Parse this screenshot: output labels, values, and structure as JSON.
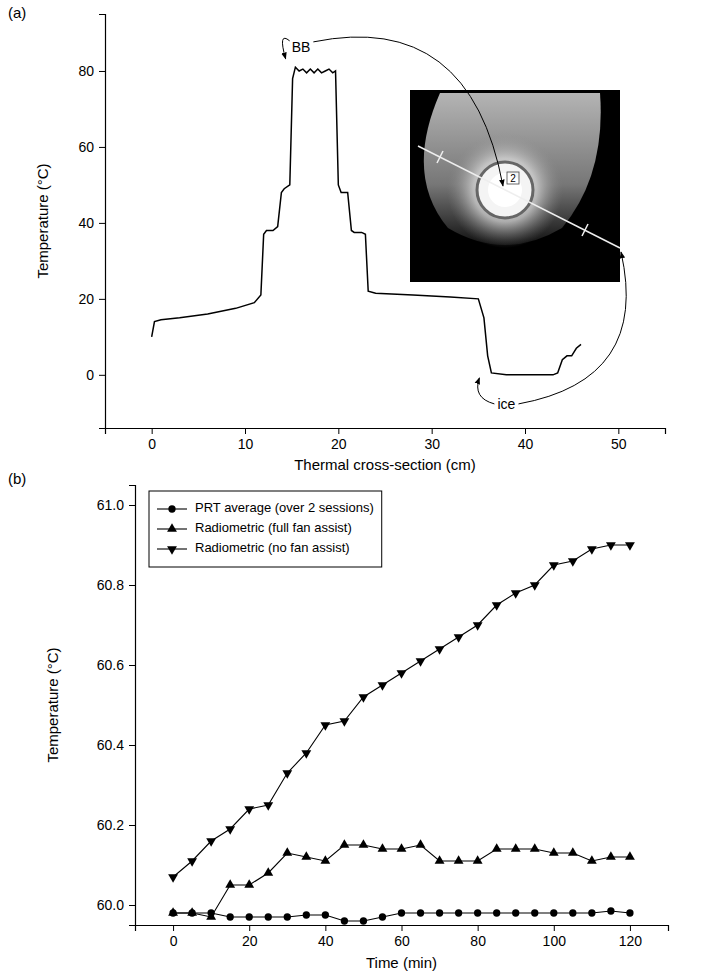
{
  "chart_data": [
    {
      "type": "line",
      "panel_label": "(a)",
      "x_label": "Thermal cross-section (cm)",
      "y_label": "Temperature (°C)",
      "xlim": [
        -5,
        55
      ],
      "xticks": [
        0,
        10,
        20,
        30,
        40,
        50
      ],
      "ylim": [
        -14,
        95
      ],
      "yticks": [
        0,
        20,
        40,
        60,
        80
      ],
      "x": [
        0,
        0.3,
        1,
        3,
        6,
        9,
        11,
        11.7,
        12,
        12.3,
        13,
        13.5,
        13.9,
        14.2,
        14.8,
        15.1,
        15.4,
        15.8,
        16.2,
        16.6,
        17,
        17.4,
        17.8,
        18.2,
        18.6,
        19,
        19.4,
        19.7,
        20,
        20.3,
        21,
        21.4,
        21.7,
        22.5,
        22.9,
        23.2,
        24,
        28,
        32,
        35,
        35.6,
        36,
        36.4,
        38,
        40,
        43,
        43.5,
        44,
        44.5,
        45,
        45.5,
        46
      ],
      "series": [
        {
          "color": "#000000",
          "values": [
            10,
            14,
            14.5,
            15,
            16,
            17.5,
            19,
            21,
            37,
            38,
            38,
            39,
            48,
            49,
            50,
            78,
            81,
            80,
            80.5,
            79.5,
            80.5,
            79.5,
            80.5,
            79.5,
            80,
            80.5,
            79.5,
            80,
            50,
            48,
            48,
            38,
            37.5,
            37.5,
            37,
            22,
            21.5,
            21,
            20.5,
            20,
            15,
            5,
            0.5,
            0,
            0,
            0,
            0.5,
            4,
            5,
            5,
            7,
            8
          ]
        }
      ],
      "annotations": [
        {
          "text": "BB",
          "x": 16,
          "y": 86
        },
        {
          "text": "ice",
          "x": 38,
          "y": -8
        }
      ],
      "inset_labels": [
        "2"
      ]
    },
    {
      "type": "line",
      "panel_label": "(b)",
      "x_label": "Time (min)",
      "y_label": "Temperature (°C)",
      "xlim": [
        -10,
        130
      ],
      "xticks": [
        0,
        20,
        40,
        60,
        80,
        100,
        120
      ],
      "ylim": [
        59.95,
        61.05
      ],
      "yticks": [
        {
          "value": 60,
          "label": "60.0"
        },
        60.2,
        60.4,
        60.6,
        60.8,
        {
          "value": 61,
          "label": "61.0"
        }
      ],
      "legend": "top-left",
      "x": [
        0,
        5,
        10,
        15,
        20,
        25,
        30,
        35,
        40,
        45,
        50,
        55,
        60,
        65,
        70,
        75,
        80,
        85,
        90,
        95,
        100,
        105,
        110,
        115,
        120
      ],
      "series": [
        {
          "name": "PRT average (over 2 sessions)",
          "color": "#000000",
          "marker": "circle",
          "values": [
            59.98,
            59.98,
            59.98,
            59.97,
            59.97,
            59.97,
            59.97,
            59.975,
            59.975,
            59.96,
            59.96,
            59.97,
            59.98,
            59.98,
            59.98,
            59.98,
            59.98,
            59.98,
            59.98,
            59.98,
            59.98,
            59.98,
            59.98,
            59.985,
            59.98
          ]
        },
        {
          "name": "Radiometric (full fan assist)",
          "color": "#000000",
          "marker": "triangle-up",
          "values": [
            59.98,
            59.98,
            59.97,
            60.05,
            60.05,
            60.08,
            60.13,
            60.12,
            60.11,
            60.15,
            60.15,
            60.14,
            60.14,
            60.15,
            60.11,
            60.11,
            60.11,
            60.14,
            60.14,
            60.14,
            60.13,
            60.13,
            60.11,
            60.12,
            60.12
          ]
        },
        {
          "name": "Radiometric (no fan assist)",
          "color": "#000000",
          "marker": "triangle-down",
          "values": [
            60.07,
            60.11,
            60.16,
            60.19,
            60.24,
            60.25,
            60.33,
            60.38,
            60.45,
            60.46,
            60.52,
            60.55,
            60.58,
            60.61,
            60.64,
            60.67,
            60.7,
            60.75,
            60.78,
            60.8,
            60.85,
            60.86,
            60.89,
            60.9,
            60.9
          ]
        }
      ]
    }
  ]
}
